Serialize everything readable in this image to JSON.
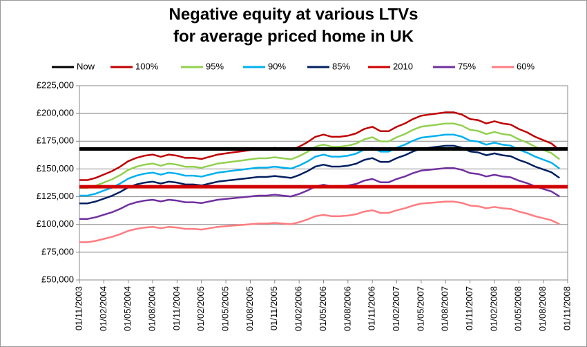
{
  "chart_data": {
    "type": "line",
    "title": [
      "Negative equity at various LTVs",
      "for average priced home in UK"
    ],
    "categories": [
      "01/11/2003",
      null,
      null,
      "01/02/2004",
      null,
      null,
      "01/05/2004",
      null,
      null,
      "01/08/2004",
      null,
      null,
      "01/11/2004",
      null,
      null,
      "01/02/2005",
      null,
      null,
      "01/05/2005",
      null,
      null,
      "01/08/2005",
      null,
      null,
      "01/11/2005",
      null,
      null,
      "01/02/2006",
      null,
      null,
      "01/05/2006",
      null,
      null,
      "01/08/2006",
      null,
      null,
      "01/11/2006",
      null,
      null,
      "01/02/2007",
      null,
      null,
      "01/05/2007",
      null,
      null,
      "01/08/2007",
      null,
      null,
      "01/11/2007",
      null,
      null,
      "01/02/2008",
      null,
      null,
      "01/05/2008",
      null,
      null,
      "01/08/2008",
      null,
      null,
      "01/11/2008"
    ],
    "series": [
      {
        "name": "Now",
        "color": "#000000",
        "width": 5,
        "values": [
          168000,
          168000,
          168000,
          168000,
          168000,
          168000,
          168000,
          168000,
          168000,
          168000,
          168000,
          168000,
          168000,
          168000,
          168000,
          168000,
          168000,
          168000,
          168000,
          168000,
          168000,
          168000,
          168000,
          168000,
          168000,
          168000,
          168000,
          168000,
          168000,
          168000,
          168000,
          168000,
          168000,
          168000,
          168000,
          168000,
          168000,
          168000,
          168000,
          168000,
          168000,
          168000,
          168000,
          168000,
          168000,
          168000,
          168000,
          168000,
          168000,
          168000,
          168000,
          168000,
          168000,
          168000,
          168000,
          168000,
          168000,
          168000,
          168000,
          168000,
          168000
        ]
      },
      {
        "name": "100%",
        "color": "#c00000",
        "width": 2.5,
        "values": [
          140000,
          140000,
          142000,
          145000,
          148000,
          152000,
          157000,
          160000,
          162000,
          163000,
          161000,
          163000,
          162000,
          160000,
          160000,
          159000,
          161000,
          163000,
          164000,
          165000,
          166000,
          167000,
          168000,
          168000,
          169000,
          168000,
          167000,
          170000,
          174000,
          179000,
          181000,
          179000,
          179000,
          180000,
          182000,
          186000,
          188000,
          184000,
          184000,
          188000,
          191000,
          195000,
          198000,
          199000,
          200000,
          201000,
          201000,
          199000,
          195000,
          194000,
          191000,
          193000,
          191000,
          190000,
          186000,
          183000,
          179000,
          176000,
          173000,
          167000,
          null
        ]
      },
      {
        "name": "95%",
        "color": "#92d050",
        "width": 2.5,
        "values": [
          133000,
          133000,
          134900,
          137750,
          140600,
          144400,
          149150,
          152000,
          153900,
          154850,
          152950,
          154850,
          153900,
          152000,
          152000,
          151050,
          152950,
          154850,
          155800,
          156750,
          157700,
          158650,
          159600,
          159600,
          160550,
          159600,
          158650,
          161500,
          165300,
          170050,
          171950,
          170050,
          170050,
          171000,
          172900,
          176700,
          178600,
          174800,
          174800,
          178600,
          181450,
          185250,
          188100,
          189050,
          190000,
          190950,
          190950,
          189050,
          185250,
          184300,
          181450,
          183350,
          181450,
          180500,
          176700,
          173850,
          170050,
          167200,
          164350,
          158650,
          null
        ]
      },
      {
        "name": "90%",
        "color": "#00b0f0",
        "width": 2.5,
        "values": [
          126000,
          126000,
          127800,
          130500,
          133200,
          136800,
          141300,
          144000,
          145800,
          146700,
          144900,
          146700,
          145800,
          144000,
          144000,
          143100,
          144900,
          146700,
          147600,
          148500,
          149400,
          150300,
          151200,
          151200,
          152100,
          151200,
          150300,
          153000,
          156600,
          161100,
          162900,
          161100,
          161100,
          162000,
          163800,
          167400,
          169200,
          165600,
          165600,
          169200,
          171900,
          175500,
          178200,
          179100,
          180000,
          180900,
          180900,
          179100,
          175500,
          174600,
          171900,
          173700,
          171900,
          171000,
          167400,
          164700,
          161100,
          158400,
          155700,
          150300,
          null
        ]
      },
      {
        "name": "85%",
        "color": "#002060",
        "width": 2.5,
        "values": [
          119000,
          119000,
          120700,
          123250,
          125800,
          129200,
          133450,
          136000,
          137700,
          138550,
          136850,
          138550,
          137700,
          136000,
          136000,
          135150,
          136850,
          138550,
          139400,
          140250,
          141100,
          141950,
          142800,
          142800,
          143650,
          142800,
          141950,
          144500,
          147900,
          152150,
          153850,
          152150,
          152150,
          153000,
          154700,
          158100,
          159800,
          156400,
          156400,
          159800,
          162350,
          165750,
          168300,
          169150,
          170000,
          170850,
          170850,
          169150,
          165750,
          164900,
          162350,
          164050,
          162350,
          161500,
          158100,
          155550,
          152150,
          149600,
          147050,
          141950,
          null
        ]
      },
      {
        "name": "2010",
        "color": "#d00000",
        "width": 5,
        "values": [
          134000,
          134000,
          134000,
          134000,
          134000,
          134000,
          134000,
          134000,
          134000,
          134000,
          134000,
          134000,
          134000,
          134000,
          134000,
          134000,
          134000,
          134000,
          134000,
          134000,
          134000,
          134000,
          134000,
          134000,
          134000,
          134000,
          134000,
          134000,
          134000,
          134000,
          134000,
          134000,
          134000,
          134000,
          134000,
          134000,
          134000,
          134000,
          134000,
          134000,
          134000,
          134000,
          134000,
          134000,
          134000,
          134000,
          134000,
          134000,
          134000,
          134000,
          134000,
          134000,
          134000,
          134000,
          134000,
          134000,
          134000,
          134000,
          134000,
          134000,
          134000
        ]
      },
      {
        "name": "75%",
        "color": "#7030a0",
        "width": 2.5,
        "values": [
          105000,
          105000,
          106500,
          108750,
          111000,
          114000,
          117750,
          120000,
          121500,
          122250,
          120750,
          122250,
          121500,
          120000,
          120000,
          119250,
          120750,
          122250,
          123000,
          123750,
          124500,
          125250,
          126000,
          126000,
          126750,
          126000,
          125250,
          127500,
          130500,
          134250,
          135750,
          134250,
          134250,
          135000,
          136500,
          139500,
          141000,
          138000,
          138000,
          141000,
          143250,
          146250,
          148500,
          149250,
          150000,
          150750,
          150750,
          149250,
          146250,
          145500,
          143250,
          144750,
          143250,
          142500,
          139500,
          137250,
          134250,
          132000,
          129750,
          125250,
          null
        ]
      },
      {
        "name": "60%",
        "color": "#ff7c80",
        "width": 2.5,
        "values": [
          84000,
          84000,
          85200,
          87000,
          88800,
          91200,
          94200,
          96000,
          97200,
          97800,
          96600,
          97800,
          97200,
          96000,
          96000,
          95400,
          96600,
          97800,
          98400,
          99000,
          99600,
          100200,
          100800,
          100800,
          101400,
          100800,
          100200,
          102000,
          104400,
          107400,
          108600,
          107400,
          107400,
          108000,
          109200,
          111600,
          112800,
          110400,
          110400,
          112800,
          114600,
          117000,
          118800,
          119400,
          120000,
          120600,
          120600,
          119400,
          117000,
          116400,
          114600,
          115800,
          114600,
          114000,
          111600,
          109800,
          107400,
          105600,
          103800,
          100200,
          null
        ]
      }
    ],
    "ylim": [
      50000,
      225000
    ],
    "yticks": [
      {
        "value": 50000,
        "label": "£50,000"
      },
      {
        "value": 75000,
        "label": "£75,000"
      },
      {
        "value": 100000,
        "label": "£100,000"
      },
      {
        "value": 125000,
        "label": "£125,000"
      },
      {
        "value": 150000,
        "label": "£150,000"
      },
      {
        "value": 175000,
        "label": "£175,000"
      },
      {
        "value": 200000,
        "label": "£200,000"
      },
      {
        "value": 225000,
        "label": "£225,000"
      }
    ],
    "grid": true,
    "legend": "top"
  }
}
